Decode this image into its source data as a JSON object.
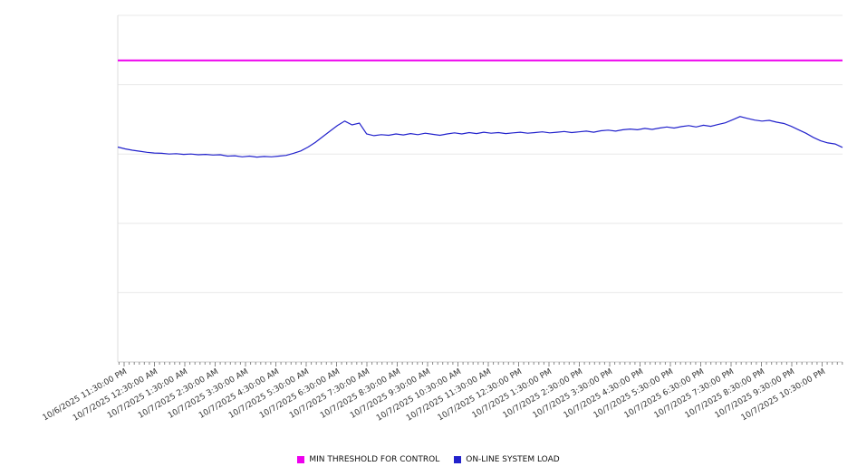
{
  "chart_data": {
    "type": "line",
    "title": "",
    "xlabel": "",
    "ylabel": "",
    "ylim": [
      0,
      100
    ],
    "y_gridline_values": [
      0,
      20,
      40,
      60,
      80,
      100
    ],
    "y_tick_labels_visible": false,
    "grid": "horizontal",
    "legend_position": "bottom",
    "x_tick_labels": [
      "10/6/2025 11:30:00 PM",
      "10/7/2025 12:30:00 AM",
      "10/7/2025 1:30:00 AM",
      "10/7/2025 2:30:00 AM",
      "10/7/2025 3:30:00 AM",
      "10/7/2025 4:30:00 AM",
      "10/7/2025 5:30:00 AM",
      "10/7/2025 6:30:00 AM",
      "10/7/2025 7:30:00 AM",
      "10/7/2025 8:30:00 AM",
      "10/7/2025 9:30:00 AM",
      "10/7/2025 10:30:00 AM",
      "10/7/2025 11:30:00 AM",
      "10/7/2025 12:30:00 PM",
      "10/7/2025 1:30:00 PM",
      "10/7/2025 2:30:00 PM",
      "10/7/2025 3:30:00 PM",
      "10/7/2025 4:30:00 PM",
      "10/7/2025 5:30:00 PM",
      "10/7/2025 6:30:00 PM",
      "10/7/2025 7:30:00 PM",
      "10/7/2025 8:30:00 PM",
      "10/7/2025 9:30:00 PM",
      "10/7/2025 10:30:00 PM"
    ],
    "series": [
      {
        "name": "MIN THRESHOLD FOR CONTROL",
        "color": "#ee00ee",
        "style": "horizontal-threshold",
        "value": 87
      },
      {
        "name": "ON-LINE SYSTEM LOAD",
        "color": "#2222cc",
        "style": "line",
        "values": [
          62.0,
          61.5,
          61.1,
          60.8,
          60.5,
          60.3,
          60.2,
          60.0,
          60.1,
          59.9,
          60.0,
          59.8,
          59.9,
          59.7,
          59.8,
          59.4,
          59.5,
          59.2,
          59.4,
          59.1,
          59.3,
          59.2,
          59.4,
          59.6,
          60.2,
          60.9,
          62.0,
          63.4,
          65.0,
          66.6,
          68.2,
          69.5,
          68.4,
          68.9,
          65.8,
          65.3,
          65.6,
          65.4,
          65.8,
          65.5,
          65.9,
          65.6,
          66.0,
          65.7,
          65.4,
          65.8,
          66.1,
          65.8,
          66.2,
          65.9,
          66.3,
          66.0,
          66.2,
          65.9,
          66.1,
          66.3,
          66.0,
          66.2,
          66.4,
          66.1,
          66.3,
          66.5,
          66.2,
          66.4,
          66.6,
          66.3,
          66.7,
          66.9,
          66.6,
          67.0,
          67.2,
          67.0,
          67.4,
          67.1,
          67.5,
          67.8,
          67.5,
          67.9,
          68.2,
          67.8,
          68.3,
          68.0,
          68.5,
          69.0,
          69.9,
          70.8,
          70.3,
          69.8,
          69.5,
          69.7,
          69.2,
          68.8,
          68.0,
          67.0,
          66.0,
          64.8,
          63.8,
          63.2,
          62.9,
          61.9
        ]
      }
    ]
  }
}
